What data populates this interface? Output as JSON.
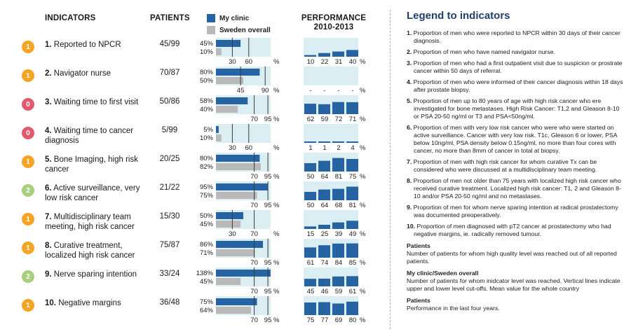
{
  "headers": {
    "indicators": "INDICATORS",
    "patients": "PATIENTS",
    "performance_line1": "PERFORMANCE",
    "performance_line2": "2010-2013"
  },
  "key": {
    "my_clinic_label": "My clinic",
    "sweden_label": "Sweden overall",
    "my_clinic_color": "#2563a3",
    "sweden_color": "#b9b9b9",
    "panel_bg": "#daeef3"
  },
  "level_colors": {
    "0": "#e05a6d",
    "1": "#f5a524",
    "2": "#a8cf7e"
  },
  "unit": "%",
  "chart_data": {
    "type": "bar",
    "title": "",
    "rows": [
      {
        "level": "1",
        "number": "1.",
        "name": "Reported to NPCR",
        "patients": "45/99",
        "my_clinic": 45,
        "my_clinic_label": "45%",
        "sweden": 10,
        "sweden_label": "10%",
        "cutoffs": [
          30,
          60
        ],
        "cutoff_labels": [
          "30",
          "60"
        ],
        "performance": [
          10,
          22,
          31,
          40
        ],
        "performance_labels": [
          "10",
          "22",
          "31",
          "40"
        ]
      },
      {
        "level": "1",
        "number": "2.",
        "name": "Navigator nurse",
        "patients": "70/87",
        "my_clinic": 80,
        "my_clinic_label": "80%",
        "sweden": 50,
        "sweden_label": "50%",
        "cutoffs": [
          45,
          90
        ],
        "cutoff_labels": [
          "45",
          "90"
        ],
        "performance": [
          null,
          null,
          null,
          null
        ],
        "performance_labels": [
          "-",
          "-",
          "-",
          "-"
        ]
      },
      {
        "level": "0",
        "number": "3.",
        "name": "Waiting time to first visit",
        "patients": "50/86",
        "my_clinic": 58,
        "my_clinic_label": "58%",
        "sweden": 40,
        "sweden_label": "40%",
        "cutoffs": [
          70,
          95
        ],
        "cutoff_labels": [
          "70",
          "95"
        ],
        "performance": [
          62,
          59,
          72,
          71
        ],
        "performance_labels": [
          "62",
          "59",
          "72",
          "71"
        ]
      },
      {
        "level": "0",
        "number": "4.",
        "name": "Waiting time to cancer diagnosis",
        "patients": "5/99",
        "my_clinic": 5,
        "my_clinic_label": "5%",
        "sweden": 10,
        "sweden_label": "10%",
        "cutoffs": [
          30,
          60
        ],
        "cutoff_labels": [
          "30",
          "60"
        ],
        "performance": [
          1,
          1,
          2,
          4
        ],
        "performance_labels": [
          "1",
          "1",
          "2",
          "4"
        ]
      },
      {
        "level": "1",
        "number": "5.",
        "name": "Bone Imaging, high risk cancer",
        "patients": "20/25",
        "my_clinic": 80,
        "my_clinic_label": "80%",
        "sweden": 82,
        "sweden_label": "82%",
        "cutoffs": [
          70,
          95
        ],
        "cutoff_labels": [
          "70",
          "95"
        ],
        "performance": [
          50,
          64,
          81,
          75
        ],
        "performance_labels": [
          "50",
          "64",
          "81",
          "75"
        ]
      },
      {
        "level": "2",
        "number": "6.",
        "name": "Active surveillance, very low risk cancer",
        "patients": "21/22",
        "my_clinic": 95,
        "my_clinic_label": "95%",
        "sweden": 75,
        "sweden_label": "75%",
        "cutoffs": [
          70,
          95
        ],
        "cutoff_labels": [
          "70",
          "95"
        ],
        "performance": [
          50,
          64,
          68,
          81
        ],
        "performance_labels": [
          "50",
          "64",
          "68",
          "81"
        ]
      },
      {
        "level": "1",
        "number": "7.",
        "name": "Multidisciplinary team meeting, high risk cancer",
        "patients": "15/30",
        "my_clinic": 50,
        "my_clinic_label": "50%",
        "sweden": 45,
        "sweden_label": "45%",
        "cutoffs": [
          30,
          70
        ],
        "cutoff_labels": [
          "30",
          "70"
        ],
        "performance": [
          15,
          25,
          39,
          49
        ],
        "performance_labels": [
          "15",
          "25",
          "39",
          "49"
        ]
      },
      {
        "level": "1",
        "number": "8.",
        "name": "Curative treatment, localized high risk cancer",
        "patients": "75/87",
        "my_clinic": 86,
        "my_clinic_label": "86%",
        "sweden": 71,
        "sweden_label": "71%",
        "cutoffs": [
          70,
          95
        ],
        "cutoff_labels": [
          "70",
          "95"
        ],
        "performance": [
          61,
          74,
          84,
          85
        ],
        "performance_labels": [
          "61",
          "74",
          "84",
          "85"
        ]
      },
      {
        "level": "2",
        "number": "9.",
        "name": "Nerve sparing intention",
        "patients": "33/24",
        "my_clinic": 138,
        "my_clinic_label": "138%",
        "sweden": 45,
        "sweden_label": "45%",
        "cutoffs": [
          70,
          95
        ],
        "cutoff_labels": [
          "70",
          "95"
        ],
        "performance": [
          45,
          46,
          59,
          61
        ],
        "performance_labels": [
          "45",
          "46",
          "59",
          "61"
        ]
      },
      {
        "level": "1",
        "number": "10.",
        "name": "Negative margins",
        "patients": "36/48",
        "my_clinic": 75,
        "my_clinic_label": "75%",
        "sweden": 64,
        "sweden_label": "64%",
        "cutoffs": [
          70,
          95
        ],
        "cutoff_labels": [
          "70",
          "95"
        ],
        "performance": [
          75,
          77,
          69,
          80
        ],
        "performance_labels": [
          "75",
          "77",
          "69",
          "80"
        ]
      }
    ]
  },
  "legend": {
    "title": "Legend to indicators",
    "items": [
      {
        "num": "1.",
        "text": "Proportion of men who were reported to NPCR within 30 days of their cancer diagnosis."
      },
      {
        "num": "2.",
        "text": "Proportion of men who have named navigator nurse."
      },
      {
        "num": "3.",
        "text": "Proportion of men who had a first outpatient visit due to suspicion or prostrate cancer within 50 days of referral."
      },
      {
        "num": "4.",
        "text": "Proportion of men who were informed of their cancer diagnosis within 18 days after prostate biopsy."
      },
      {
        "num": "5.",
        "text": "Proportion of men up to 80 years of age with high risk cancer who ere investigated for bone metastases. High Risk Cancer: T1,2 and Gleason 8-10 or PSA 20-50 ng/ml or T3 and PSA<50ng/ml."
      },
      {
        "num": "6.",
        "text": "Proportion of men with very low risk cancer who were who were started on active surveillance. Cancer with very low risk. T1c, Gleason 6 or lower, PSA below 10ng/ml, PSA density below 0.15ng/ml, no more than four cores with cancer, no more than 8mm of cancer in total at biopsy."
      },
      {
        "num": "7.",
        "text": "Proportion of men with high risk cancer for whom curative Tx can be considered who were discussed at a multidisciplinary team meeting."
      },
      {
        "num": "8.",
        "text": "Proportion of men not older than 75 years with localized high risk cancer who received curative treatment. Localized high risk cancer: T1, 2 and Gleason 8-10 and/or PSA 20-50 ng/ml and no metastases."
      },
      {
        "num": "9.",
        "text": "Proportion of men for whom nerve sparing intention at radical prostatectomy was documented preoperatively."
      },
      {
        "num": "10.",
        "text": "Proportion of men diagnosed with pT2 cancer at prostatectomy who had negative margins, ie. radically removed tumour."
      }
    ],
    "patients_title": "Patients",
    "patients_text": "Number of patients for whom high quality level was reached out of all reported patients.",
    "clinic_title": "My clinic/Sweden overall",
    "clinic_text": "Number of patients for whom inidcator level was reached. Vertical lines indicate upper and lower level cut-offs. Mean value for the whole country",
    "performance_title": "Patients",
    "performance_text": "Performance in the last four years."
  }
}
